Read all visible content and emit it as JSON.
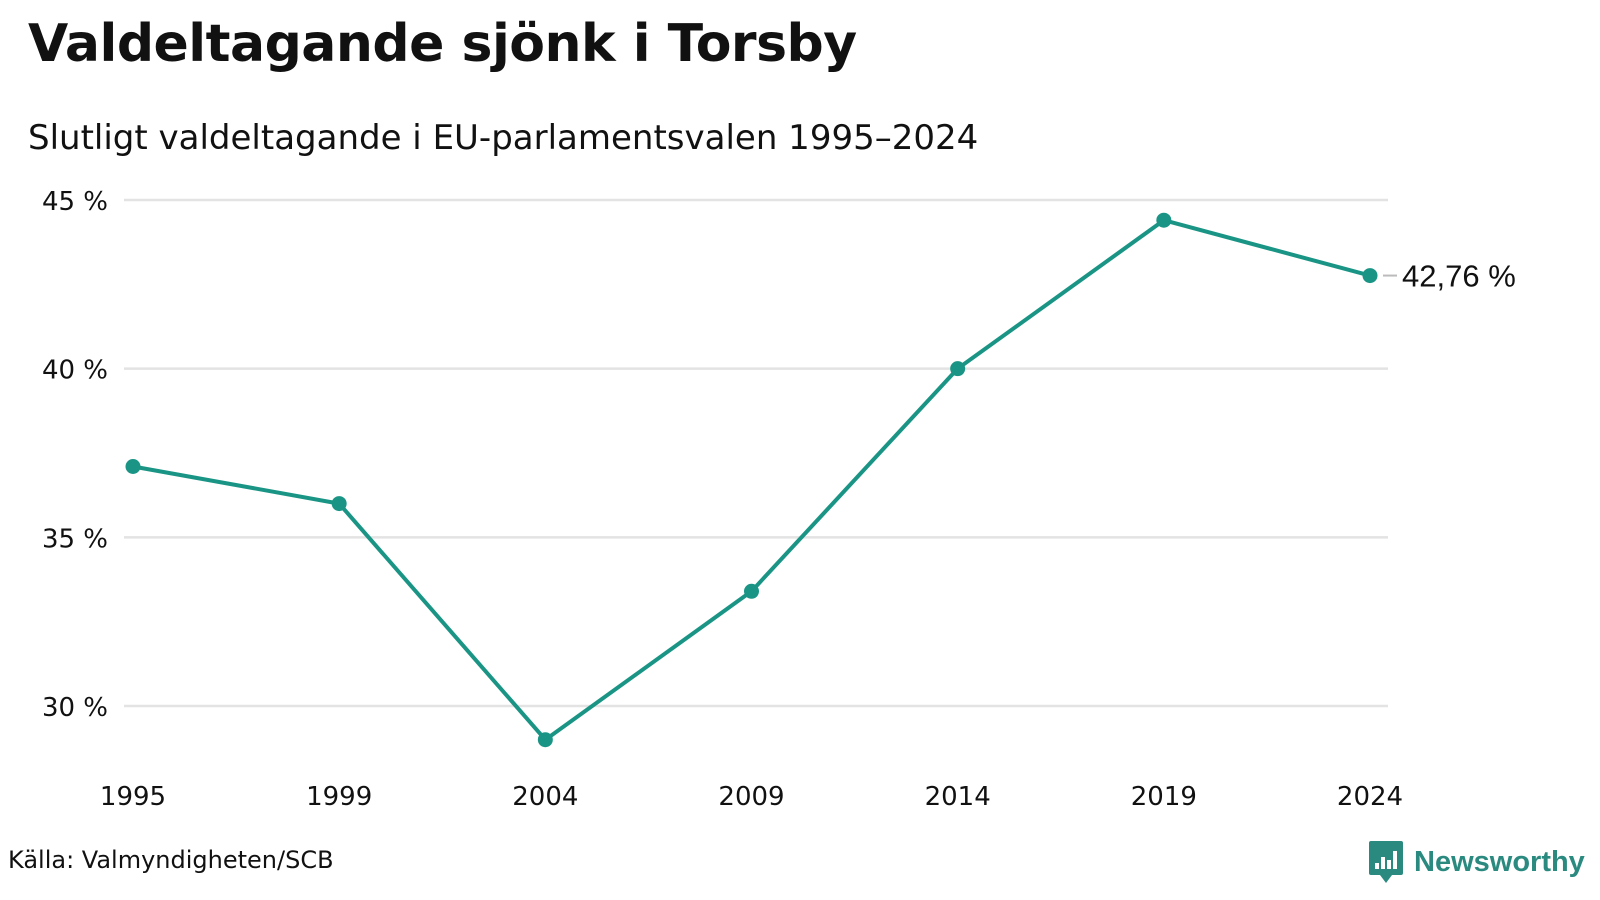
{
  "title": "Valdeltagande sjönk i Torsby",
  "subtitle": "Slutligt valdeltagande i EU-parlamentsvalen 1995–2024",
  "source": "Källa: Valmyndigheten/SCB",
  "brand": {
    "name": "Newsworthy",
    "icon": "newsworthy-logo-icon",
    "color": "#2b8a80"
  },
  "chart_data": {
    "type": "line",
    "categories": [
      "1995",
      "1999",
      "2004",
      "2009",
      "2014",
      "2019",
      "2024"
    ],
    "series": [
      {
        "values": [
          37.1,
          36.0,
          29.0,
          33.4,
          40.0,
          44.4,
          42.76
        ],
        "color": "#1a9585"
      }
    ],
    "ylim": [
      29,
      45
    ],
    "yticks": [
      30,
      35,
      40,
      45
    ],
    "ytick_labels": [
      "30 %",
      "35 %",
      "40 %",
      "45 %"
    ],
    "grid": true,
    "end_label": "42,76 %",
    "colors": {
      "line": "#1a9585",
      "grid": "#e3e3e3",
      "text": "#111111"
    }
  }
}
